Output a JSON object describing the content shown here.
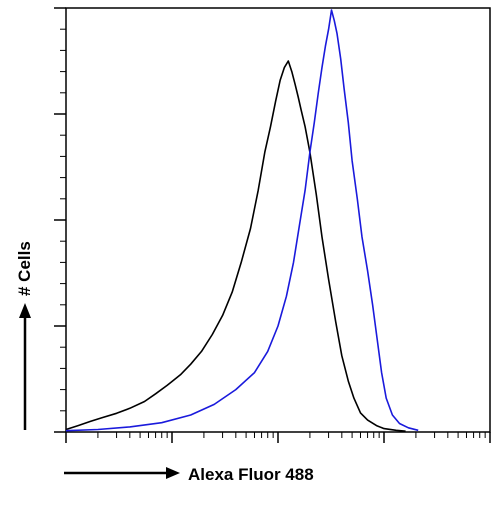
{
  "chart_data": {
    "type": "line",
    "title": "",
    "xlabel": "Alexa Fluor 488",
    "ylabel": "# Cells",
    "x_scale": "log",
    "xlim": [
      1,
      10000
    ],
    "ylim": [
      0,
      100
    ],
    "grid": false,
    "legend": "none",
    "series": [
      {
        "color": "#000000",
        "points": [
          [
            1,
            0.6
          ],
          [
            1.3,
            1.5
          ],
          [
            1.7,
            2.5
          ],
          [
            2.2,
            3.4
          ],
          [
            3,
            4.4
          ],
          [
            4,
            5.6
          ],
          [
            5.5,
            7.2
          ],
          [
            7,
            9
          ],
          [
            9,
            11
          ],
          [
            12,
            13.5
          ],
          [
            15,
            16
          ],
          [
            19,
            19
          ],
          [
            24,
            23
          ],
          [
            30,
            27.5
          ],
          [
            37,
            33
          ],
          [
            45,
            40
          ],
          [
            55,
            48
          ],
          [
            65,
            57
          ],
          [
            75,
            66
          ],
          [
            85,
            72
          ],
          [
            95,
            78
          ],
          [
            105,
            83
          ],
          [
            115,
            86
          ],
          [
            125,
            87.5
          ],
          [
            135,
            85
          ],
          [
            145,
            82
          ],
          [
            155,
            79
          ],
          [
            165,
            76
          ],
          [
            180,
            72
          ],
          [
            200,
            66
          ],
          [
            230,
            56
          ],
          [
            260,
            46
          ],
          [
            300,
            36
          ],
          [
            350,
            26
          ],
          [
            400,
            18
          ],
          [
            460,
            12
          ],
          [
            520,
            8
          ],
          [
            600,
            4.5
          ],
          [
            700,
            2.8
          ],
          [
            850,
            1.5
          ],
          [
            1000,
            0.8
          ],
          [
            1300,
            0.4
          ],
          [
            1600,
            0.2
          ]
        ]
      },
      {
        "color": "#1a1adc",
        "points": [
          [
            1,
            0.3
          ],
          [
            2,
            0.6
          ],
          [
            4,
            1.2
          ],
          [
            8,
            2.2
          ],
          [
            15,
            4
          ],
          [
            25,
            6.5
          ],
          [
            40,
            10
          ],
          [
            60,
            14
          ],
          [
            80,
            19
          ],
          [
            100,
            25
          ],
          [
            120,
            32
          ],
          [
            140,
            40
          ],
          [
            160,
            49
          ],
          [
            180,
            57
          ],
          [
            200,
            66
          ],
          [
            220,
            73
          ],
          [
            240,
            80
          ],
          [
            260,
            86
          ],
          [
            280,
            91
          ],
          [
            300,
            95
          ],
          [
            320,
            99.5
          ],
          [
            340,
            97
          ],
          [
            360,
            94
          ],
          [
            390,
            88
          ],
          [
            420,
            81
          ],
          [
            460,
            73
          ],
          [
            500,
            64
          ],
          [
            560,
            55
          ],
          [
            620,
            46
          ],
          [
            700,
            38
          ],
          [
            780,
            30
          ],
          [
            860,
            22
          ],
          [
            950,
            14
          ],
          [
            1050,
            8
          ],
          [
            1200,
            4
          ],
          [
            1400,
            2
          ],
          [
            1700,
            1
          ],
          [
            2100,
            0.4
          ]
        ]
      }
    ]
  }
}
